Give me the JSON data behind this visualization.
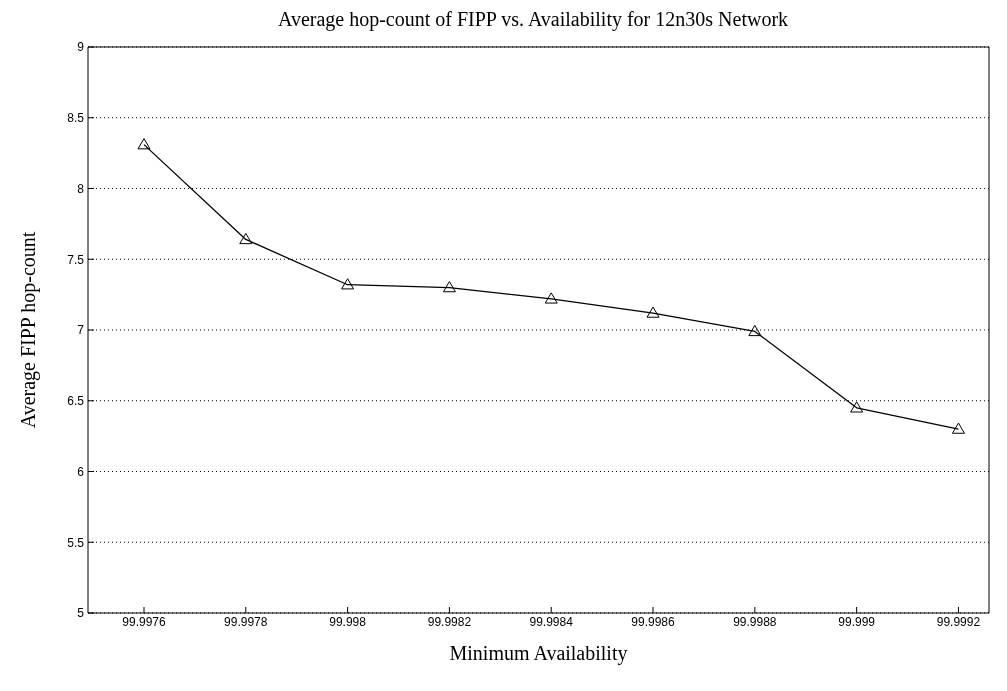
{
  "chart_data": {
    "type": "line",
    "title": "Average hop-count of FIPP vs. Availability for 12n30s Network",
    "xlabel": "Minimum Availability",
    "ylabel": "Average FIPP hop-count",
    "x": [
      99.9976,
      99.9978,
      99.998,
      99.9982,
      99.9984,
      99.9986,
      99.9988,
      99.999,
      99.9992
    ],
    "series": [
      {
        "color": "#000000",
        "values": [
          8.31,
          7.64,
          7.32,
          7.3,
          7.22,
          7.12,
          6.99,
          6.45,
          6.3
        ]
      }
    ],
    "xlim": [
      99.99749,
      99.99926
    ],
    "xticks": [
      99.9976,
      99.9978,
      99.998,
      99.9982,
      99.9984,
      99.9986,
      99.9988,
      99.999,
      99.9992
    ],
    "ylim": [
      5,
      9
    ],
    "yticks": [
      5,
      5.5,
      6,
      6.5,
      7,
      7.5,
      8,
      8.5,
      9
    ],
    "grid": "y",
    "marker": "triangle",
    "line_style": "solid"
  }
}
